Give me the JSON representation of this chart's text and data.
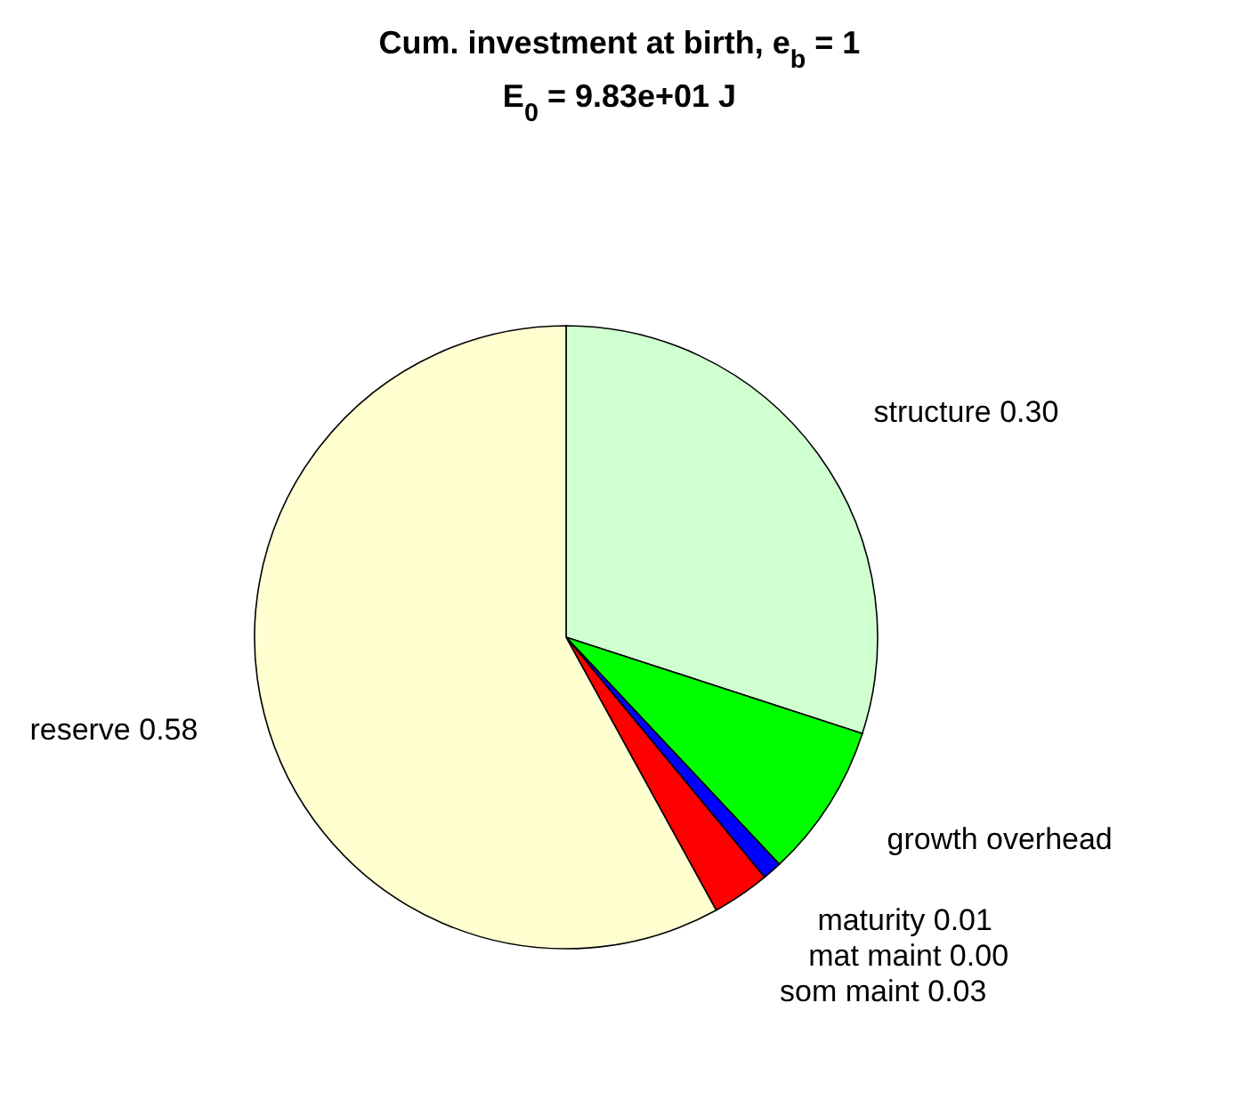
{
  "chart_data": {
    "type": "pie",
    "title": "Cum. investment at birth, e$_{b}$ = 1",
    "subtitle": "E$_{0}$ = 9.83e+01 J",
    "categories": [
      "structure",
      "growth overhead",
      "maturity",
      "mat maint",
      "som maint",
      "reserve"
    ],
    "values": [
      0.3,
      0.08,
      0.01,
      0.0,
      0.03,
      0.58
    ],
    "value_labels": [
      "0.30",
      null,
      "0.01",
      "0.00",
      "0.03",
      "0.58"
    ],
    "colors": [
      "#d0ffd0",
      "#00ff00",
      "#0000ff",
      "#ff00ff",
      "#ff0000",
      "#ffffd0"
    ]
  }
}
